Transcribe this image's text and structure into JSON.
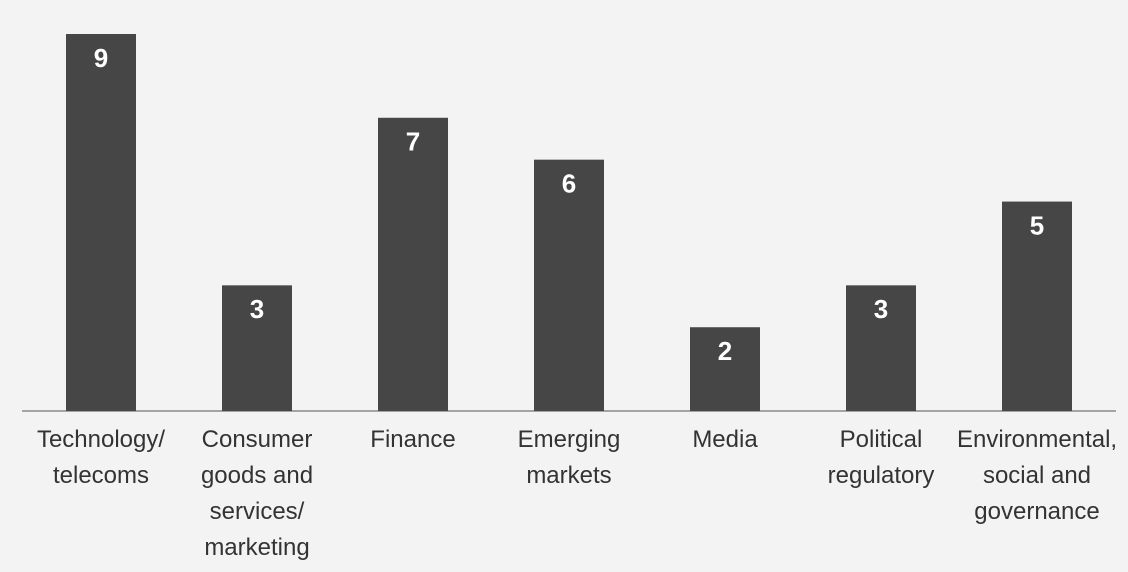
{
  "chart_data": {
    "type": "bar",
    "categories": [
      "Technology/\ntelecoms",
      "Consumer\ngoods and\nservices/\nmarketing",
      "Finance",
      "Emerging\nmarkets",
      "Media",
      "Political\nregulatory",
      "Environmental,\nsocial and\ngovernance"
    ],
    "values": [
      9,
      3,
      7,
      6,
      2,
      3,
      5
    ],
    "color": "#464646"
  }
}
